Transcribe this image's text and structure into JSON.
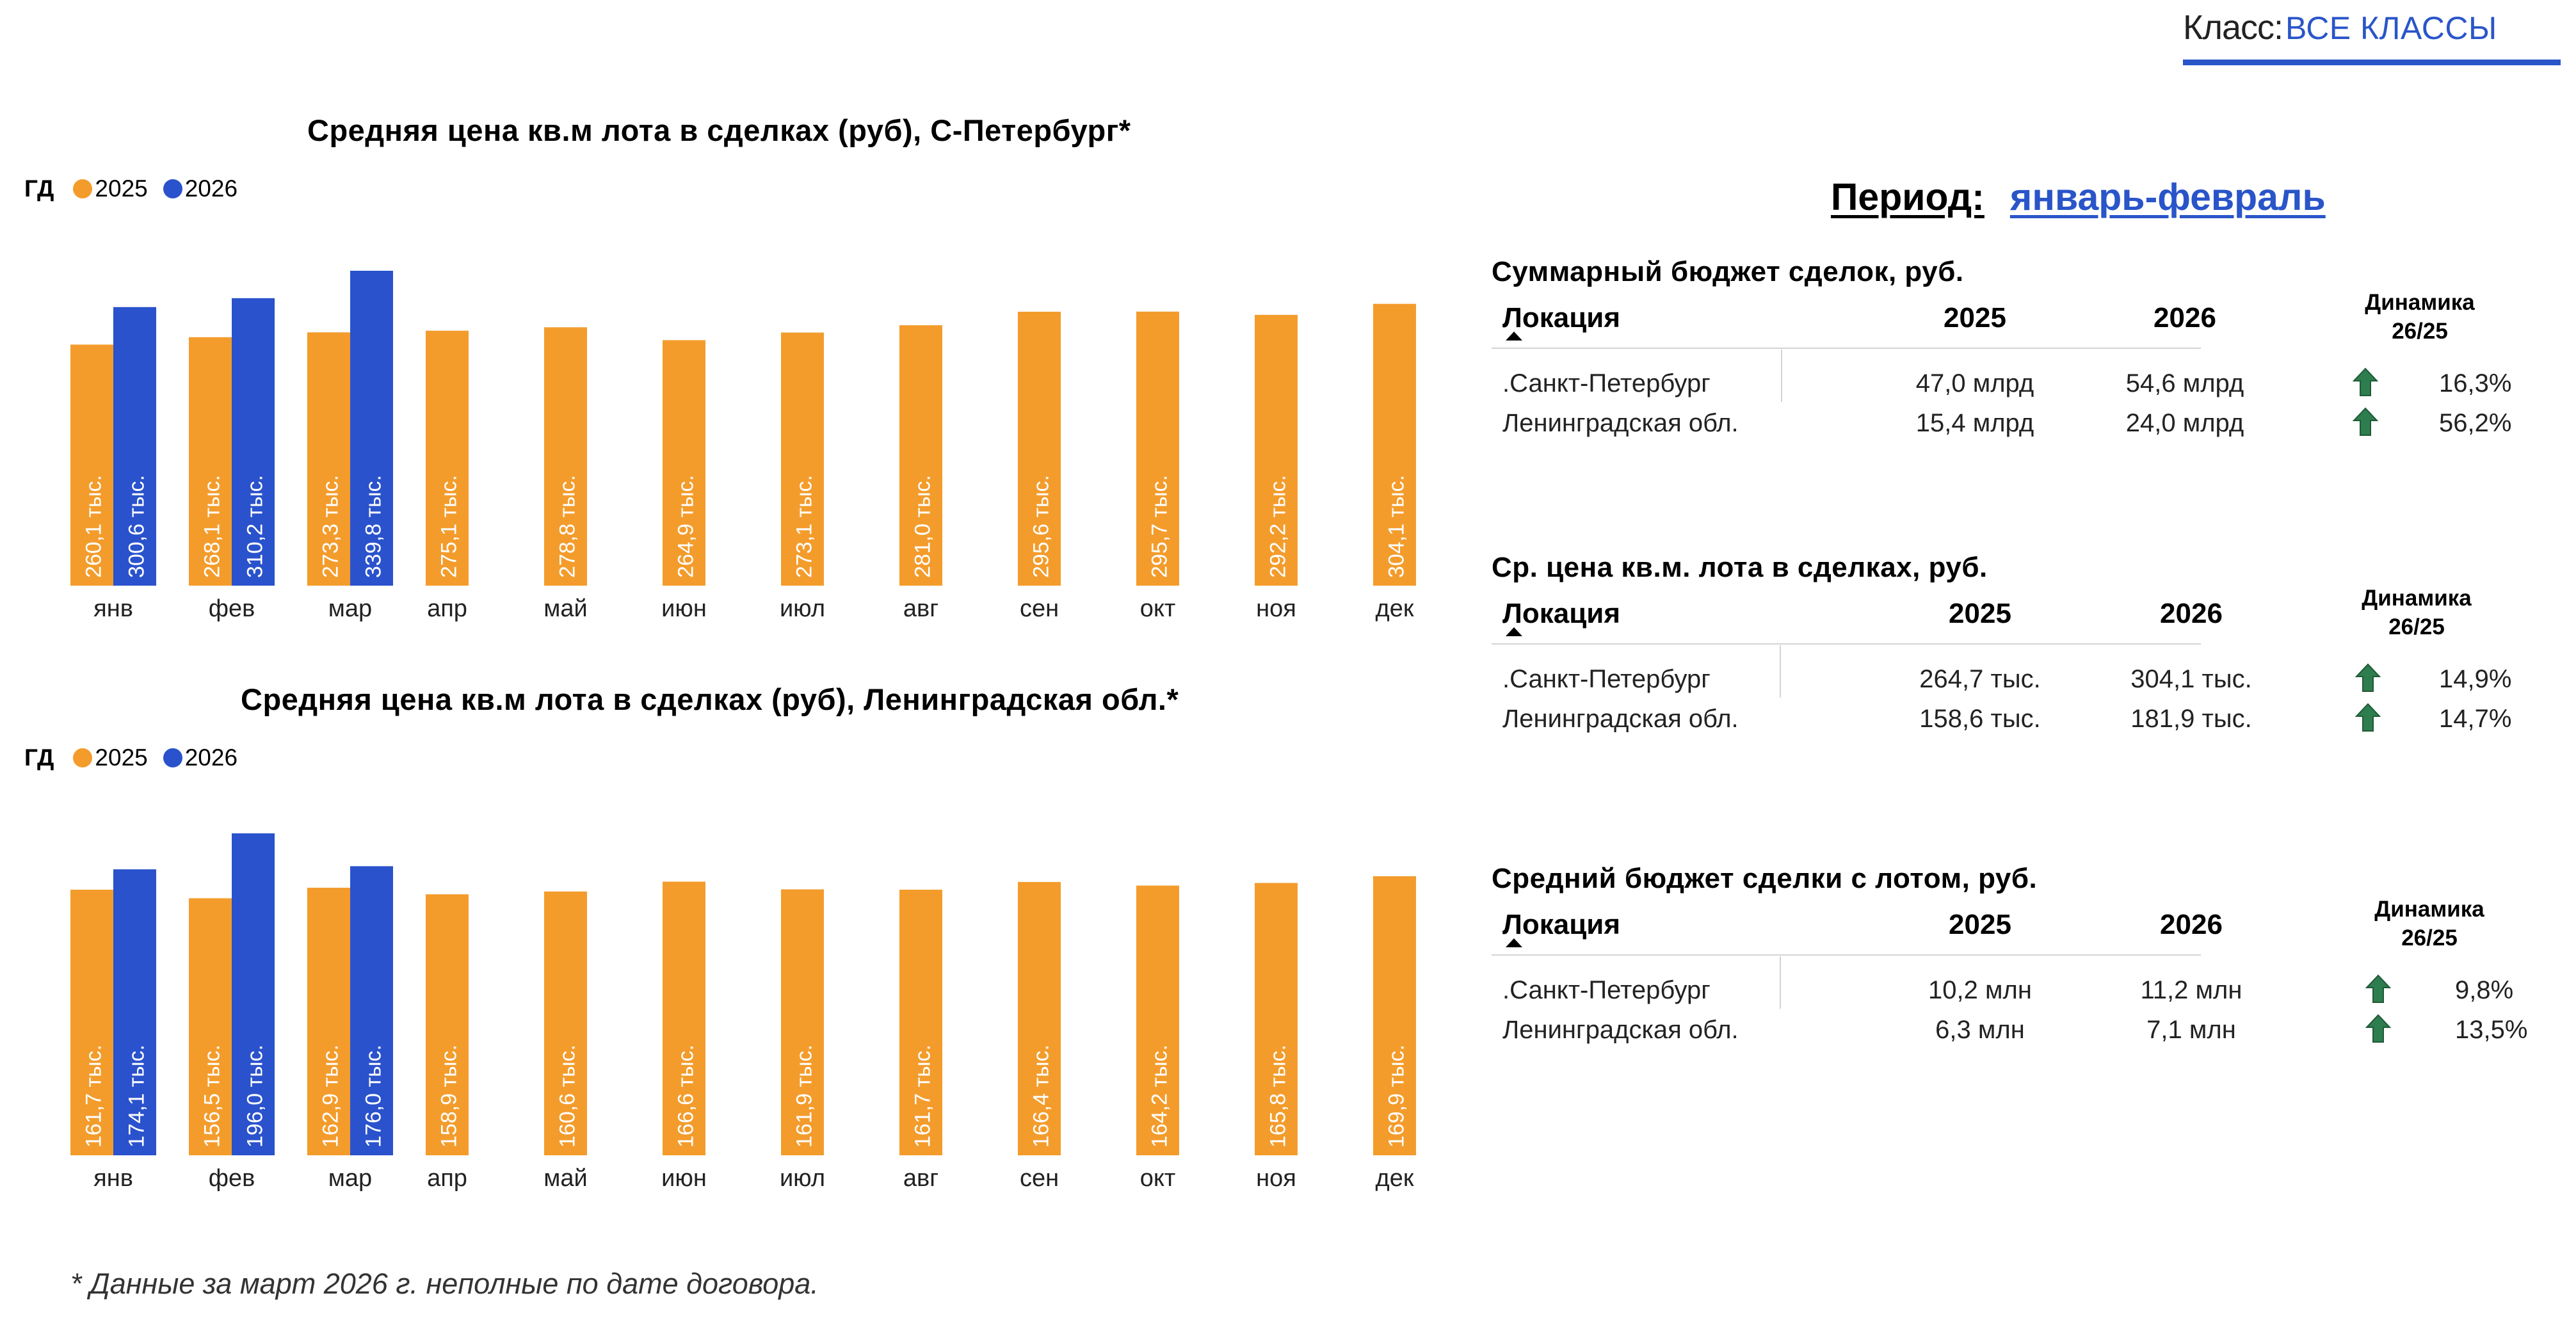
{
  "class_filter": {
    "label": "Класс:",
    "value": "ВСЕ КЛАССЫ"
  },
  "legend": {
    "gd_label": "ГД",
    "colors": {
      "2025": "#f39c2c",
      "2026": "#2a52cc"
    }
  },
  "chart_data": [
    {
      "type": "bar",
      "title": "Средняя цена кв.м  лота в сделках (руб), С-Петербург*",
      "unit_suffix": "тыс.",
      "categories": [
        "янв",
        "фев",
        "мар",
        "апр",
        "май",
        "июн",
        "июл",
        "авг",
        "сен",
        "окт",
        "ноя",
        "дек"
      ],
      "series": [
        {
          "name": "2025",
          "color": "#f39c2c",
          "values": [
            260.1,
            268.1,
            273.3,
            275.1,
            278.8,
            264.9,
            273.1,
            281.0,
            295.6,
            295.7,
            292.2,
            304.1
          ]
        },
        {
          "name": "2026",
          "color": "#2a52cc",
          "values": [
            300.6,
            310.2,
            339.8,
            null,
            null,
            null,
            null,
            null,
            null,
            null,
            null,
            null
          ]
        }
      ],
      "ylim": [
        0,
        350
      ],
      "grid": false
    },
    {
      "type": "bar",
      "title": "Средняя цена кв.м  лота в сделках (руб), Ленинградская обл.*",
      "unit_suffix": "тыс.",
      "categories": [
        "янв",
        "фев",
        "мар",
        "апр",
        "май",
        "июн",
        "июл",
        "авг",
        "сен",
        "окт",
        "ноя",
        "дек"
      ],
      "series": [
        {
          "name": "2025",
          "color": "#f39c2c",
          "values": [
            161.7,
            156.5,
            162.9,
            158.9,
            160.6,
            166.6,
            161.9,
            161.7,
            166.4,
            164.2,
            165.8,
            169.9
          ]
        },
        {
          "name": "2026",
          "color": "#2a52cc",
          "values": [
            174.1,
            196.0,
            176.0,
            null,
            null,
            null,
            null,
            null,
            null,
            null,
            null,
            null
          ]
        }
      ],
      "ylim": [
        0,
        200
      ],
      "grid": false
    }
  ],
  "period": {
    "label": "Период:",
    "value": "январь-февраль"
  },
  "tables": [
    {
      "title": "Суммарный бюджет сделок, руб.",
      "headers": {
        "location": "Локация",
        "y2025": "2025",
        "y2026": "2026",
        "dynamics": "Динамика",
        "dynamics_sub": "26/25"
      },
      "rows": [
        {
          "location": ".Санкт-Петербург",
          "y2025": "47,0 млрд",
          "y2026": "54,6 млрд",
          "dynamics": "16,3%",
          "trend": "up"
        },
        {
          "location": "Ленинградская обл.",
          "y2025": "15,4 млрд",
          "y2026": "24,0 млрд",
          "dynamics": "56,2%",
          "trend": "up"
        }
      ]
    },
    {
      "title": "Ср. цена кв.м. лота в сделках, руб.",
      "headers": {
        "location": "Локация",
        "y2025": "2025",
        "y2026": "2026",
        "dynamics": "Динамика",
        "dynamics_sub": "26/25"
      },
      "rows": [
        {
          "location": ".Санкт-Петербург",
          "y2025": "264,7 тыс.",
          "y2026": "304,1 тыс.",
          "dynamics": "14,9%",
          "trend": "up"
        },
        {
          "location": "Ленинградская обл.",
          "y2025": "158,6 тыс.",
          "y2026": "181,9 тыс.",
          "dynamics": "14,7%",
          "trend": "up"
        }
      ]
    },
    {
      "title": "Средний бюджет сделки с лотом, руб.",
      "headers": {
        "location": "Локация",
        "y2025": "2025",
        "y2026": "2026",
        "dynamics": "Динамика",
        "dynamics_sub": "26/25"
      },
      "rows": [
        {
          "location": ".Санкт-Петербург",
          "y2025": "10,2 млн",
          "y2026": "11,2 млн",
          "dynamics": "9,8%",
          "trend": "up"
        },
        {
          "location": "Ленинградская обл.",
          "y2025": "6,3 млн",
          "y2026": "7,1 млн",
          "dynamics": "13,5%",
          "trend": "up"
        }
      ]
    }
  ],
  "icons": {
    "trend_up": "arrow-up-icon",
    "sort": "sort-ascending-icon"
  },
  "trend_color": "#2e7d4f",
  "footnote": "* Данные за март 2026 г. неполные по дате договора."
}
